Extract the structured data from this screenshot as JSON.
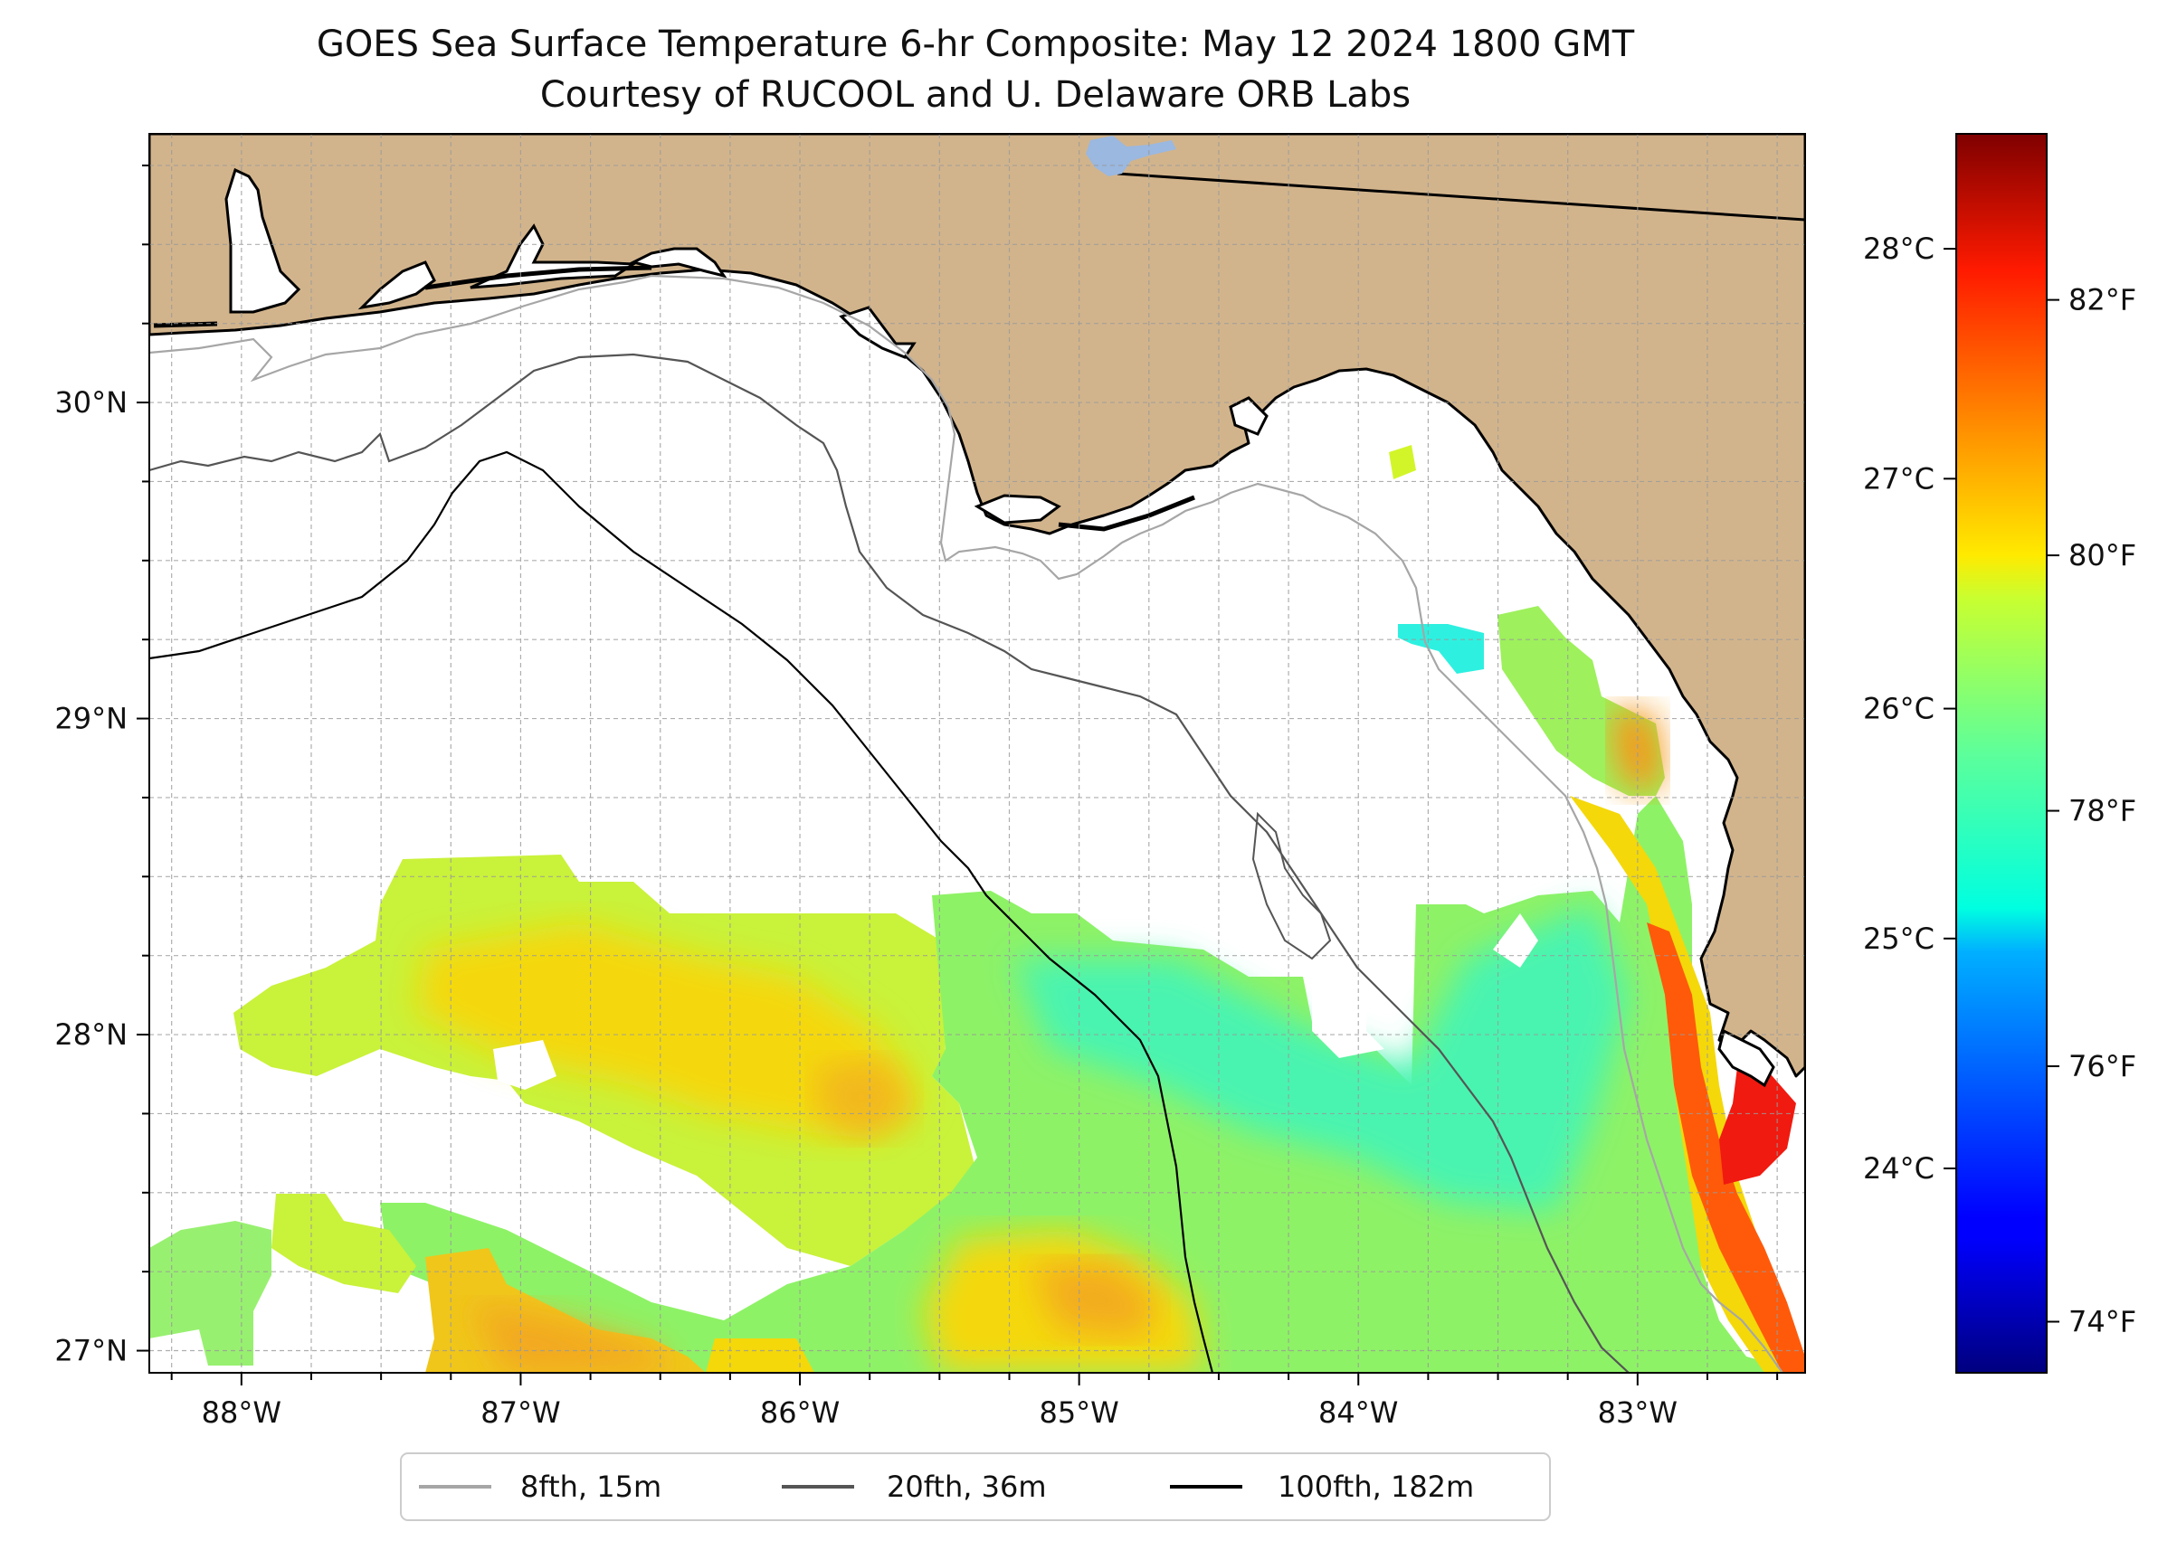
{
  "title": {
    "line1": "GOES Sea Surface Temperature 6-hr Composite: May 12 2024 1800 GMT",
    "line2": "Courtesy of RUCOOL and U. Delaware ORB Labs"
  },
  "map": {
    "lon_range": [
      -88.33,
      -82.4
    ],
    "lat_range": [
      26.93,
      30.85
    ],
    "gridlines": true,
    "land_color": "#d2b48c",
    "lon_ticks": [
      {
        "value": -88,
        "label": "88°W"
      },
      {
        "value": -87,
        "label": "87°W"
      },
      {
        "value": -86,
        "label": "86°W"
      },
      {
        "value": -85,
        "label": "85°W"
      },
      {
        "value": -84,
        "label": "84°W"
      },
      {
        "value": -83,
        "label": "83°W"
      }
    ],
    "lat_ticks": [
      {
        "value": 30,
        "label": "30°N"
      },
      {
        "value": 29,
        "label": "29°N"
      },
      {
        "value": 28,
        "label": "28°N"
      },
      {
        "value": 27,
        "label": "27°N"
      }
    ]
  },
  "colorbar": {
    "colormap": "jet",
    "f_range": [
      73.6,
      83.3
    ],
    "celsius_ticks": [
      {
        "value": 28,
        "label": "28°C"
      },
      {
        "value": 27,
        "label": "27°C"
      },
      {
        "value": 26,
        "label": "26°C"
      },
      {
        "value": 25,
        "label": "25°C"
      },
      {
        "value": 24,
        "label": "24°C"
      }
    ],
    "fahrenheit_ticks": [
      {
        "value": 82,
        "label": "82°F"
      },
      {
        "value": 80,
        "label": "80°F"
      },
      {
        "value": 78,
        "label": "78°F"
      },
      {
        "value": 76,
        "label": "76°F"
      },
      {
        "value": 74,
        "label": "74°F"
      }
    ]
  },
  "legend": {
    "items": [
      {
        "label": "8fth, 15m",
        "color": "#a6a6a6"
      },
      {
        "label": "20fth, 36m",
        "color": "#555555"
      },
      {
        "label": "100fth, 182m",
        "color": "#000000"
      }
    ]
  }
}
